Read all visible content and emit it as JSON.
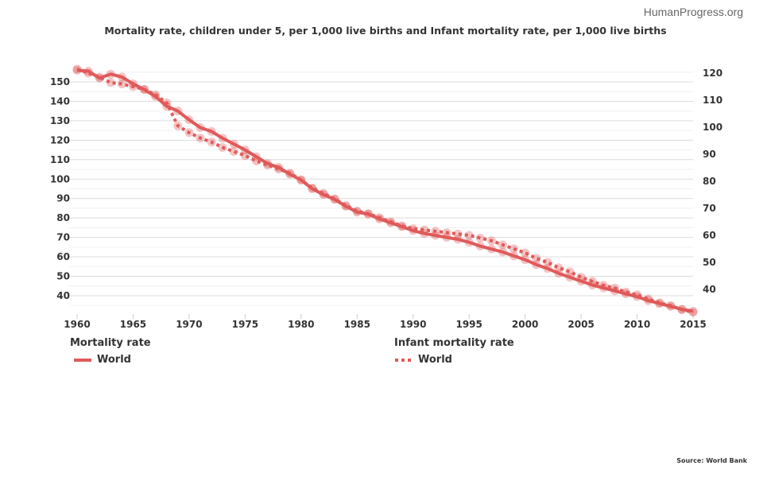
{
  "brand": "HumanProgress.org",
  "source": "Source: World Bank",
  "chart_data": {
    "type": "line",
    "title": "Mortality rate, children under 5, per 1,000 live births and Infant mortality rate, per 1,000 live births",
    "x": [
      1960,
      1961,
      1962,
      1963,
      1964,
      1965,
      1966,
      1967,
      1968,
      1969,
      1970,
      1971,
      1972,
      1973,
      1974,
      1975,
      1976,
      1977,
      1978,
      1979,
      1980,
      1981,
      1982,
      1983,
      1984,
      1985,
      1986,
      1987,
      1988,
      1989,
      1990,
      1991,
      1992,
      1993,
      1994,
      1995,
      1996,
      1997,
      1998,
      1999,
      2000,
      2001,
      2002,
      2003,
      2004,
      2005,
      2006,
      2007,
      2008,
      2009,
      2010,
      2011,
      2012,
      2013,
      2014,
      2015
    ],
    "x_ticks": [
      "1960",
      "1965",
      "1970",
      "1975",
      "1980",
      "1985",
      "1990",
      "1995",
      "2000",
      "2005",
      "2010",
      "2015"
    ],
    "xlim": [
      1960,
      2015
    ],
    "left_axis": {
      "ylim": [
        32,
        159
      ],
      "ticks": [
        40,
        50,
        60,
        70,
        80,
        90,
        100,
        110,
        120,
        130,
        140,
        150
      ]
    },
    "right_axis": {
      "ylim": [
        31,
        124
      ],
      "ticks": [
        40,
        50,
        60,
        70,
        80,
        90,
        100,
        110,
        120
      ]
    },
    "grid": true,
    "legend_position": "bottom",
    "color": "#e05a5a",
    "series": [
      {
        "group": "Mortality rate",
        "name": "World",
        "axis": "left",
        "style": "solid",
        "values": [
          156,
          155.5,
          152,
          154,
          152.5,
          149,
          146,
          142.5,
          137.5,
          135,
          130.5,
          126.5,
          124.5,
          121,
          118,
          115,
          111.5,
          108,
          106,
          102.5,
          99.5,
          95,
          92,
          89.5,
          86,
          83,
          82,
          79.5,
          77.5,
          75.5,
          73.5,
          72,
          71,
          70,
          69,
          67.5,
          65.5,
          64,
          62.5,
          60.5,
          58.5,
          56,
          54,
          51.5,
          49.5,
          47.5,
          45.5,
          44,
          42.5,
          41,
          39.5,
          37.5,
          36,
          34.5,
          33,
          32
        ]
      },
      {
        "group": "Infant mortality rate",
        "name": "World",
        "axis": "right",
        "style": "dotted",
        "values": [
          121.5,
          120,
          118.5,
          116.5,
          116,
          115,
          114,
          112,
          109,
          100.5,
          98,
          96,
          94.5,
          92.5,
          91,
          89.5,
          87.5,
          86,
          84.5,
          83,
          80.5,
          77.5,
          75.5,
          73.5,
          71,
          69,
          68,
          66.5,
          65,
          63.5,
          62.5,
          62,
          61.5,
          61,
          60.5,
          60,
          59,
          58,
          56.5,
          55,
          53.5,
          51.5,
          50,
          48,
          46.5,
          44.5,
          43,
          41.5,
          40.5,
          39,
          38,
          36.5,
          35,
          34,
          32.5,
          31.5
        ]
      }
    ]
  }
}
